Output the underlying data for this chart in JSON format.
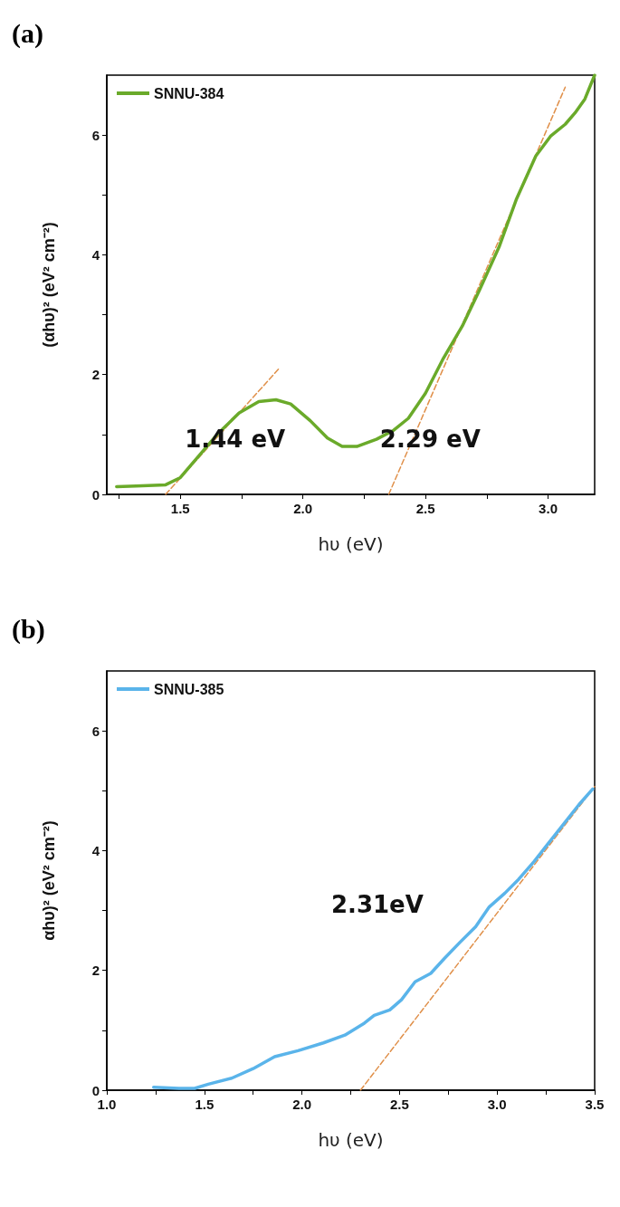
{
  "chart_data": [
    {
      "type": "line",
      "title": "(a)",
      "xlabel": "hυ (eV)",
      "ylabel": "(αhυ)² (eV² cm⁻²)",
      "xlim": [
        1.2,
        3.19
      ],
      "ylim": [
        0,
        7
      ],
      "xticks": [
        {
          "value": 1.25,
          "label": null
        },
        1.5,
        {
          "value": 1.75,
          "label": null
        },
        {
          "value": 2,
          "label": "2.0"
        },
        {
          "value": 2.25,
          "label": null
        },
        2.5,
        {
          "value": 2.75,
          "label": null
        },
        {
          "value": 3,
          "label": "3.0"
        }
      ],
      "yticks": [
        0,
        {
          "value": 1,
          "label": null
        },
        2,
        {
          "value": 3,
          "label": null
        },
        4,
        {
          "value": 5,
          "label": null
        },
        6
      ],
      "grid": false,
      "legend": "top left",
      "marker": "none",
      "series": [
        {
          "name": "SNNU-384",
          "color": "#6aaa2a",
          "line_style": "solid",
          "x": [
            1.24,
            1.32,
            1.44,
            1.5,
            1.56,
            1.65,
            1.74,
            1.82,
            1.89,
            1.95,
            2.03,
            2.1,
            2.16,
            2.22,
            2.3,
            2.37,
            2.43,
            2.5,
            2.57,
            2.65,
            2.72,
            2.8,
            2.87,
            2.95,
            3.01,
            3.07,
            3.11,
            3.15,
            3.19
          ],
          "values": [
            0.13,
            0.14,
            0.16,
            0.28,
            0.57,
            1.0,
            1.36,
            1.55,
            1.58,
            1.51,
            1.23,
            0.94,
            0.8,
            0.8,
            0.92,
            1.07,
            1.27,
            1.69,
            2.25,
            2.81,
            3.41,
            4.13,
            4.92,
            5.65,
            5.98,
            6.18,
            6.37,
            6.6,
            7.0
          ]
        },
        {
          "color": "#e0904a",
          "line_style": "dashed",
          "x": [
            1.44,
            1.9
          ],
          "values": [
            0,
            2.09
          ]
        },
        {
          "color": "#e0904a",
          "line_style": "dashed",
          "x": [
            2.35,
            3.07
          ],
          "values": [
            0,
            6.8
          ]
        }
      ],
      "annotations": [
        "1.44 eV",
        "2.29 eV"
      ]
    },
    {
      "type": "line",
      "title": "(b)",
      "xlabel": "hυ (eV)",
      "ylabel": "αhυ)² (eV² cm⁻²)",
      "xlim": [
        1,
        3.5
      ],
      "ylim": [
        0,
        7
      ],
      "xticks": [
        {
          "value": 1,
          "label": "1.0"
        },
        {
          "value": 1.25,
          "label": null
        },
        1.5,
        {
          "value": 1.75,
          "label": null
        },
        {
          "value": 2,
          "label": "2.0"
        },
        {
          "value": 2.25,
          "label": null
        },
        2.5,
        {
          "value": 2.75,
          "label": null
        },
        {
          "value": 3,
          "label": "3.0"
        },
        {
          "value": 3.25,
          "label": null
        },
        3.5
      ],
      "yticks": [
        0,
        {
          "value": 1,
          "label": null
        },
        2,
        {
          "value": 3,
          "label": null
        },
        4,
        {
          "value": 5,
          "label": null
        },
        6
      ],
      "grid": false,
      "legend": "top left",
      "marker": "none",
      "series": [
        {
          "name": "SNNU-385",
          "color": "#5ab4ea",
          "line_style": "solid",
          "x": [
            1.24,
            1.37,
            1.45,
            1.52,
            1.64,
            1.75,
            1.86,
            1.98,
            2.11,
            2.22,
            2.32,
            2.37,
            2.45,
            2.51,
            2.58,
            2.66,
            2.73,
            2.81,
            2.89,
            2.96,
            3.04,
            3.11,
            3.19,
            3.26,
            3.34,
            3.42,
            3.49
          ],
          "values": [
            0.05,
            0.03,
            0.03,
            0.1,
            0.2,
            0.36,
            0.56,
            0.66,
            0.79,
            0.92,
            1.12,
            1.25,
            1.34,
            1.51,
            1.81,
            1.95,
            2.2,
            2.47,
            2.73,
            3.06,
            3.29,
            3.52,
            3.82,
            4.11,
            4.44,
            4.77,
            5.03
          ]
        },
        {
          "color": "#e0904a",
          "line_style": "dashed",
          "x": [
            2.3,
            3.5
          ],
          "values": [
            0,
            5.07
          ]
        }
      ],
      "annotations": [
        "2.31eV"
      ]
    }
  ]
}
